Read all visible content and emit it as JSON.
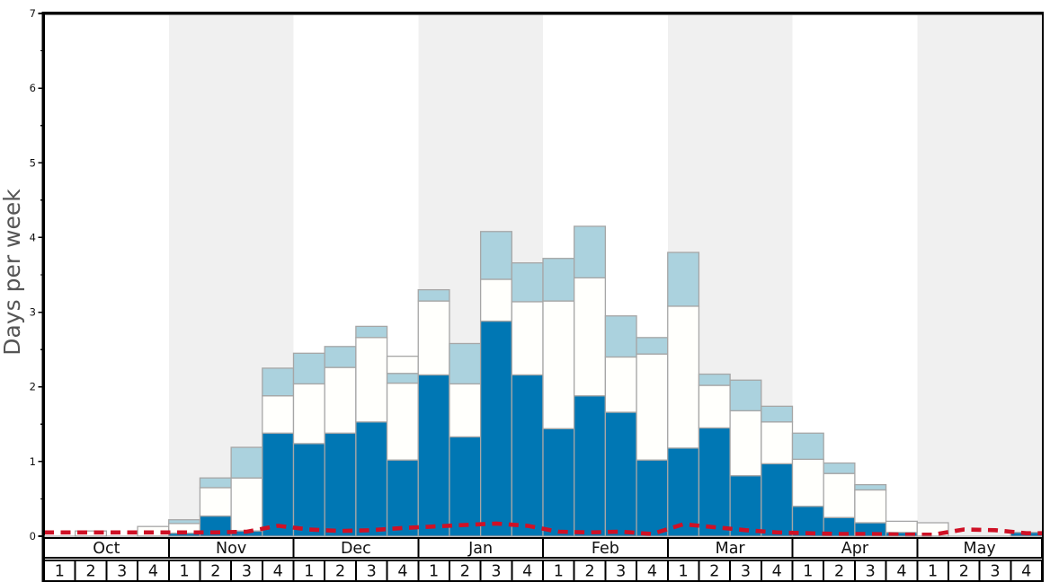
{
  "chart_data": {
    "type": "bar",
    "stacked": true,
    "title": "",
    "ylabel": "Days per week",
    "ylim": [
      0,
      7
    ],
    "y_tick_labels": [
      "0",
      "1",
      "2",
      "3",
      "4",
      "5",
      "6",
      "7"
    ],
    "y_minor_step": 0.5,
    "grid": "off",
    "legend": "none",
    "months": [
      "Oct",
      "Nov",
      "Dec",
      "Jan",
      "Feb",
      "Mar",
      "Apr",
      "May"
    ],
    "month_shaded": [
      false,
      true,
      false,
      true,
      false,
      true,
      false,
      true
    ],
    "week_labels": [
      "1",
      "2",
      "3",
      "4"
    ],
    "weeks_per_month": 4,
    "categories": [
      "Oct-1",
      "Oct-2",
      "Oct-3",
      "Oct-4",
      "Nov-1",
      "Nov-2",
      "Nov-3",
      "Nov-4",
      "Dec-1",
      "Dec-2",
      "Dec-3",
      "Dec-4",
      "Jan-1",
      "Jan-2",
      "Jan-3",
      "Jan-4",
      "Feb-1",
      "Feb-2",
      "Feb-3",
      "Feb-4",
      "Mar-1",
      "Mar-2",
      "Mar-3",
      "Mar-4",
      "Apr-1",
      "Apr-2",
      "Apr-3",
      "Apr-4",
      "May-1",
      "May-2",
      "May-3",
      "May-4"
    ],
    "series": [
      {
        "name": "dark-blue-days",
        "color": "#0077b4",
        "cumulative_tops": [
          0,
          0,
          0,
          0,
          0.04,
          0.27,
          0.07,
          1.38,
          1.24,
          1.38,
          1.53,
          1.02,
          2.16,
          1.33,
          2.88,
          2.16,
          1.44,
          1.88,
          1.66,
          1.02,
          1.18,
          1.45,
          0.81,
          0.97,
          0.4,
          0.25,
          0.18,
          0.05,
          0,
          0,
          0,
          0.05
        ]
      },
      {
        "name": "white-days",
        "color": "#fffffc",
        "cumulative_tops": [
          0,
          0.07,
          0,
          0.13,
          0.17,
          0.65,
          0.78,
          1.88,
          2.04,
          2.26,
          2.66,
          2.05,
          3.15,
          2.04,
          3.44,
          3.14,
          3.15,
          3.46,
          2.4,
          2.44,
          3.08,
          2.02,
          1.68,
          1.53,
          1.03,
          0.84,
          0.62,
          0.2,
          0.18,
          0,
          0,
          0.05
        ]
      },
      {
        "name": "light-blue-days",
        "color": "#abd2de",
        "cumulative_tops": [
          0,
          0.07,
          0,
          0.13,
          0.22,
          0.78,
          1.19,
          2.25,
          2.45,
          2.54,
          2.81,
          2.18,
          3.3,
          2.58,
          4.08,
          3.66,
          3.72,
          4.15,
          2.95,
          2.66,
          3.8,
          2.17,
          2.09,
          1.74,
          1.38,
          0.98,
          0.69,
          0.2,
          0.18,
          0,
          0,
          0.05
        ]
      },
      {
        "name": "white-cap-above-light",
        "color": "#fffffc",
        "cumulative_tops": [
          null,
          null,
          null,
          null,
          null,
          null,
          null,
          null,
          null,
          null,
          null,
          2.41,
          null,
          null,
          null,
          null,
          null,
          null,
          null,
          null,
          null,
          null,
          null,
          null,
          null,
          null,
          null,
          null,
          null,
          null,
          null,
          null
        ]
      }
    ],
    "red_dashed_line": {
      "name": "red-dashed-trend",
      "color": "#cf1126",
      "values": [
        0.05,
        0.05,
        0.05,
        0.05,
        0.05,
        0.05,
        0.06,
        0.14,
        0.09,
        0.07,
        0.08,
        0.11,
        0.13,
        0.15,
        0.17,
        0.14,
        0.06,
        0.05,
        0.06,
        0.03,
        0.16,
        0.12,
        0.08,
        0.05,
        0.04,
        0.03,
        0.03,
        0.02,
        0.02,
        0.09,
        0.08,
        0.04
      ]
    },
    "colors": {
      "band_gray": "#f0f0f0",
      "bar_border": "#a6a6a6",
      "axis_black": "#000000",
      "zero_line": "#999999",
      "tick_text": "#111111",
      "axis_title_text": "#555555"
    }
  }
}
